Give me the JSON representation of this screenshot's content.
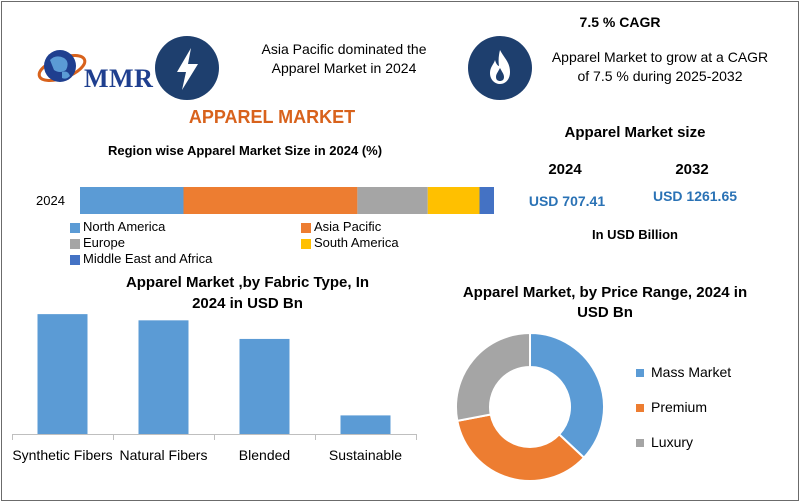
{
  "logo": {
    "text": "MMR"
  },
  "header": {
    "left_text": "Asia Pacific dominated the Apparel Market in 2024",
    "cagr_title": "7.5 % CAGR",
    "cagr_text": "Apparel Market to grow at a CAGR of 7.5 % during 2025-2032",
    "bolt_icon": "lightning-bolt-icon",
    "flame_icon": "flame-icon"
  },
  "main_title": "APPAREL MARKET",
  "market_size": {
    "title": "Apparel Market size",
    "year1": "2024",
    "year2": "2032",
    "value1": "USD 707.41",
    "value2": "USD 1261.65",
    "unit": "In USD Billion"
  },
  "colors": {
    "north_america": "#5b9bd5",
    "asia_pacific": "#ed7d31",
    "europe": "#a5a5a5",
    "south_america": "#ffc000",
    "mea": "#4472c4",
    "title_orange": "#d8621c",
    "value_blue": "#2a72b5",
    "icon_circle": "#1e3f6e"
  },
  "chart_data": [
    {
      "type": "bar",
      "orientation": "horizontal-stacked",
      "title": "Region wise Apparel Market Size in 2024 (%)",
      "categories": [
        "2024"
      ],
      "series": [
        {
          "name": "North America",
          "values": [
            25
          ],
          "color": "#5b9bd5"
        },
        {
          "name": "Asia Pacific",
          "values": [
            42
          ],
          "color": "#ed7d31"
        },
        {
          "name": "Europe",
          "values": [
            17
          ],
          "color": "#a5a5a5"
        },
        {
          "name": "South America",
          "values": [
            12.5
          ],
          "color": "#ffc000"
        },
        {
          "name": "Middle East and Africa",
          "values": [
            3.5
          ],
          "color": "#4472c4"
        }
      ],
      "legend_position": "bottom-left"
    },
    {
      "type": "bar",
      "title": "Apparel Market ,by Fabric Type, In 2024 in USD Bn",
      "categories": [
        "Synthetic Fibers",
        "Natural Fibers",
        "Blended",
        "Sustainable"
      ],
      "values": [
        290,
        275,
        230,
        45
      ],
      "color": "#5b9bd5",
      "ylim": [
        0,
        300
      ],
      "grid": false
    },
    {
      "type": "pie",
      "style": "donut",
      "title": "Apparel Market, by Price Range, 2024 in USD Bn",
      "categories": [
        "Mass Market",
        "Premium",
        "Luxury"
      ],
      "values": [
        37,
        35,
        28
      ],
      "colors": [
        "#5b9bd5",
        "#ed7d31",
        "#a5a5a5"
      ],
      "legend_position": "right"
    }
  ]
}
